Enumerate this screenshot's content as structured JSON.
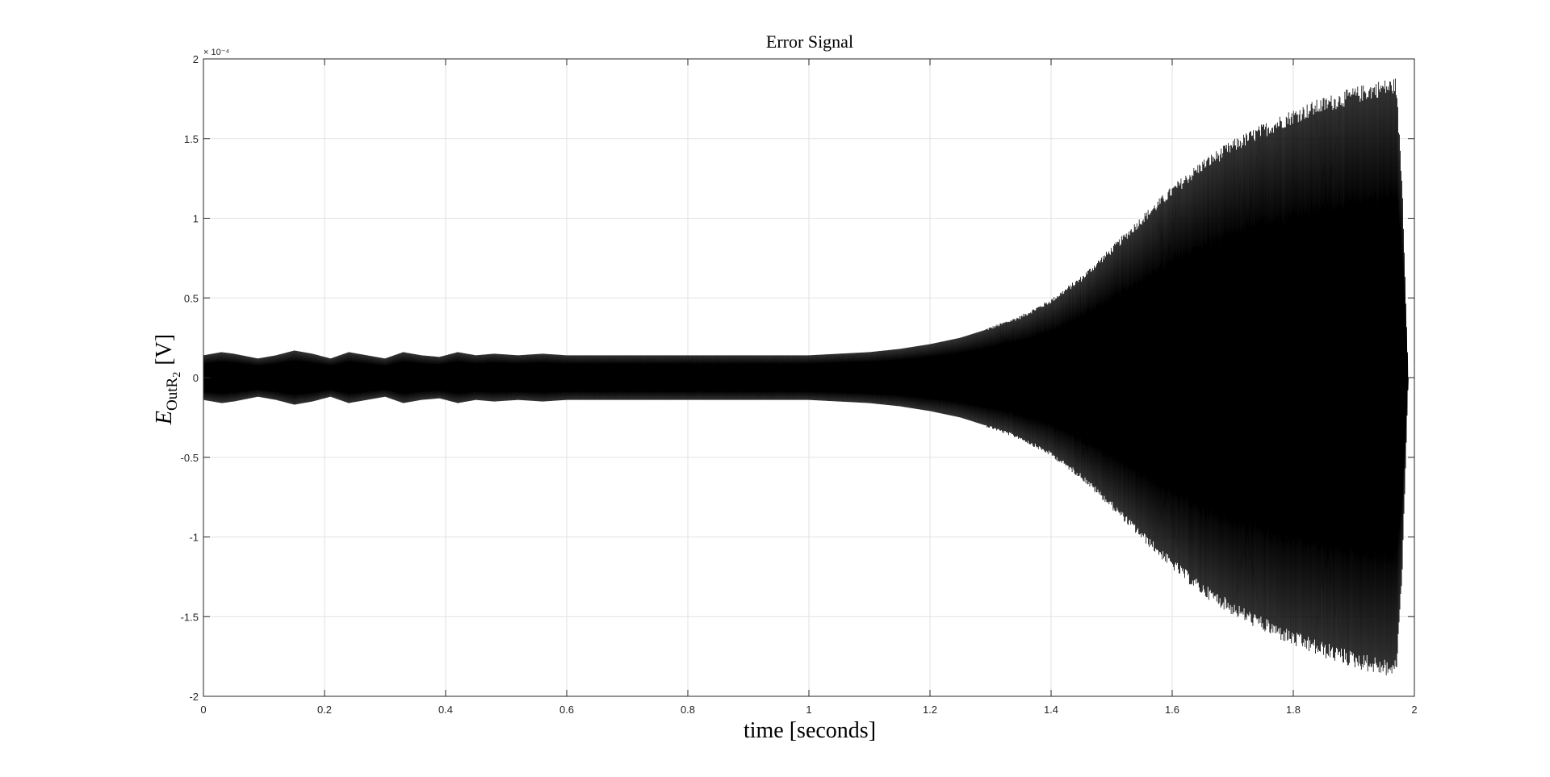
{
  "chart_data": {
    "type": "line",
    "title": "Error Signal",
    "xlabel": "time [seconds]",
    "ylabel": {
      "symbol": "E",
      "subscript": "OutR",
      "subscript_index": "2",
      "unit": "[V]"
    },
    "xlim": [
      0,
      2
    ],
    "ylim": [
      -2,
      2
    ],
    "y_exponent": "× 10⁻⁴",
    "x_ticks": [
      "0",
      "0.2",
      "0.4",
      "0.6",
      "0.8",
      "1",
      "1.2",
      "1.4",
      "1.6",
      "1.8",
      "2"
    ],
    "y_ticks": [
      "2",
      "1.5",
      "1",
      "0.5",
      "0",
      "-0.5",
      "-1",
      "-1.5",
      "-2"
    ],
    "grid": true,
    "line_color": "#000000",
    "series": [
      {
        "envelope_t": [
          0.0,
          0.03,
          0.05,
          0.09,
          0.12,
          0.15,
          0.18,
          0.21,
          0.24,
          0.27,
          0.3,
          0.33,
          0.36,
          0.39,
          0.42,
          0.45,
          0.48,
          0.52,
          0.56,
          0.6,
          0.65,
          0.7,
          0.8,
          0.9,
          1.0,
          1.05,
          1.1,
          1.15,
          1.2,
          1.25,
          1.3,
          1.35,
          1.4,
          1.45,
          1.5,
          1.55,
          1.6,
          1.65,
          1.7,
          1.75,
          1.8,
          1.85,
          1.9,
          1.94,
          1.97,
          1.98,
          1.99
        ],
        "envelope_amp": [
          0.14,
          0.16,
          0.15,
          0.12,
          0.14,
          0.17,
          0.15,
          0.12,
          0.16,
          0.14,
          0.12,
          0.16,
          0.14,
          0.13,
          0.16,
          0.14,
          0.15,
          0.14,
          0.15,
          0.14,
          0.14,
          0.14,
          0.14,
          0.14,
          0.14,
          0.15,
          0.16,
          0.18,
          0.21,
          0.25,
          0.31,
          0.38,
          0.48,
          0.62,
          0.8,
          0.99,
          1.17,
          1.33,
          1.45,
          1.55,
          1.64,
          1.71,
          1.77,
          1.81,
          1.83,
          1.2,
          0.0
        ]
      }
    ]
  }
}
